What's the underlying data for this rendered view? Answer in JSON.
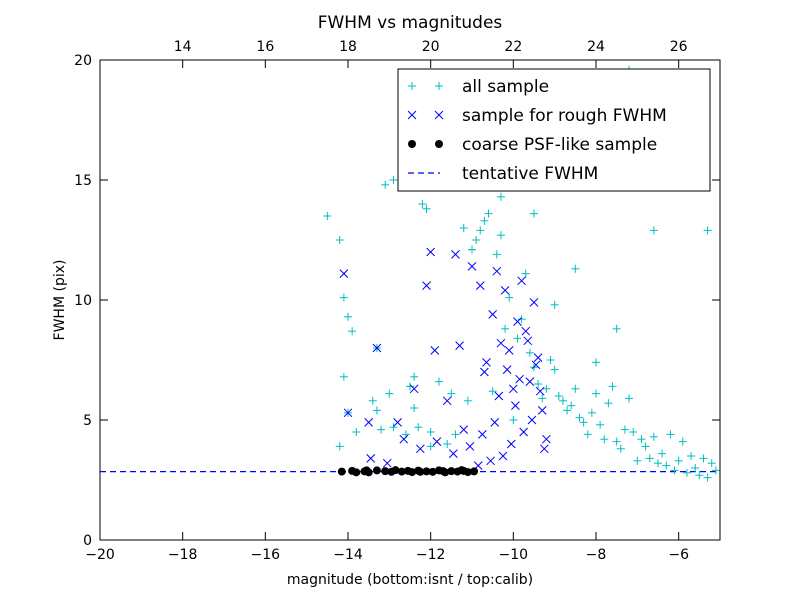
{
  "colors": {
    "all_sample": "#00bfbf",
    "rough_sample": "#0000ff",
    "psf_sample": "#000000",
    "tentative_line": "#0000ff"
  },
  "chart_data": {
    "type": "scatter",
    "title": "FWHM vs magnitudes",
    "xlabel": "magnitude (bottom:isnt / top:calib)",
    "ylabel": "FWHM (pix)",
    "xlim": [
      -20,
      -5
    ],
    "ylim": [
      0,
      20
    ],
    "x_ticks": [
      -20,
      -18,
      -16,
      -14,
      -12,
      -10,
      -8,
      -6
    ],
    "y_ticks": [
      0,
      5,
      10,
      15,
      20
    ],
    "top_axis": {
      "label_offset": 32,
      "ticks": [
        14,
        16,
        18,
        20,
        22,
        24,
        26
      ]
    },
    "grid": false,
    "legend_position": "top-right",
    "series": [
      {
        "name": "all sample",
        "marker": "plus",
        "color": "#00bfbf",
        "x": [
          -14.5,
          -14.2,
          -14.1,
          -14.0,
          -13.9,
          -13.8,
          -14.1,
          -14.2,
          -14.0,
          -13.4,
          -13.3,
          -13.2,
          -13.1,
          -13.0,
          -12.9,
          -12.6,
          -12.5,
          -12.4,
          -12.3,
          -12.2,
          -12.1,
          -12.0,
          -11.8,
          -11.6,
          -11.5,
          -11.4,
          -11.2,
          -11.1,
          -11.0,
          -10.9,
          -10.8,
          -10.7,
          -10.6,
          -10.5,
          -10.4,
          -10.3,
          -10.2,
          -10.1,
          -10.0,
          -9.9,
          -9.8,
          -9.7,
          -9.6,
          -9.5,
          -9.4,
          -9.3,
          -9.2,
          -9.1,
          -9.0,
          -8.9,
          -8.8,
          -8.7,
          -8.6,
          -8.5,
          -8.4,
          -8.3,
          -8.2,
          -8.1,
          -8.0,
          -7.9,
          -7.8,
          -7.7,
          -7.6,
          -7.5,
          -7.4,
          -7.3,
          -7.2,
          -7.1,
          -7.0,
          -6.9,
          -6.8,
          -6.7,
          -6.6,
          -6.5,
          -6.4,
          -6.3,
          -6.2,
          -6.1,
          -6.0,
          -5.9,
          -5.8,
          -5.7,
          -5.6,
          -5.5,
          -5.4,
          -5.3,
          -5.2,
          -5.1,
          -13.3,
          -12.9,
          -12.4,
          -12.0,
          -11.0,
          -10.3,
          -9.5,
          -8.2,
          -7.8,
          -7.2,
          -6.6,
          -6.9,
          -8.5,
          -9.0,
          -7.5,
          -8.0,
          -5.3
        ],
        "y": [
          13.5,
          12.5,
          10.1,
          9.3,
          8.7,
          4.5,
          6.8,
          3.9,
          5.3,
          5.8,
          5.4,
          4.6,
          14.8,
          6.1,
          15.0,
          4.4,
          6.4,
          5.5,
          4.7,
          14.0,
          13.8,
          3.9,
          6.6,
          4.0,
          6.1,
          4.4,
          13.0,
          5.8,
          12.1,
          12.5,
          12.9,
          13.3,
          13.6,
          6.2,
          11.9,
          12.7,
          8.8,
          10.1,
          5.0,
          8.4,
          9.2,
          11.1,
          7.8,
          7.2,
          6.5,
          5.9,
          6.3,
          7.5,
          7.1,
          6.0,
          5.8,
          5.4,
          5.6,
          6.3,
          5.1,
          4.9,
          4.4,
          5.3,
          6.1,
          4.8,
          4.2,
          5.7,
          6.4,
          4.1,
          3.8,
          4.6,
          5.9,
          4.5,
          3.3,
          4.2,
          3.9,
          3.4,
          4.3,
          3.2,
          3.6,
          3.1,
          4.4,
          2.9,
          3.3,
          4.1,
          2.8,
          3.5,
          3.0,
          2.7,
          3.4,
          2.6,
          3.2,
          2.9,
          8.0,
          4.7,
          6.8,
          4.5,
          12.1,
          14.3,
          13.6,
          18.4,
          16.9,
          19.6,
          12.9,
          17.0,
          11.3,
          9.8,
          8.8,
          7.4,
          12.9
        ]
      },
      {
        "name": "sample for rough FWHM",
        "marker": "x",
        "color": "#0000ff",
        "x": [
          -14.1,
          -14.0,
          -13.5,
          -13.3,
          -12.8,
          -12.4,
          -12.1,
          -12.0,
          -11.9,
          -11.6,
          -11.4,
          -11.3,
          -11.2,
          -11.0,
          -10.8,
          -10.7,
          -10.5,
          -10.4,
          -10.3,
          -10.2,
          -10.1,
          -10.0,
          -9.9,
          -9.8,
          -9.7,
          -9.6,
          -9.5,
          -9.4,
          -9.3,
          -9.2,
          -9.25,
          -9.35,
          -9.45,
          -9.55,
          -9.65,
          -9.75,
          -9.85,
          -9.95,
          -10.05,
          -10.15,
          -10.25,
          -10.35,
          -10.45,
          -10.55,
          -10.65,
          -10.75,
          -10.85,
          -11.05,
          -11.45,
          -11.85,
          -12.25,
          -12.65,
          -13.05,
          -13.45
        ],
        "y": [
          11.1,
          5.3,
          4.9,
          8.0,
          4.9,
          6.3,
          10.6,
          12.0,
          7.9,
          5.8,
          11.9,
          8.1,
          4.6,
          11.4,
          10.6,
          7.0,
          9.4,
          11.2,
          8.2,
          10.4,
          7.9,
          6.3,
          9.1,
          10.8,
          8.7,
          6.6,
          9.9,
          7.6,
          5.4,
          4.2,
          3.8,
          6.2,
          7.3,
          5.0,
          8.3,
          4.5,
          6.7,
          5.6,
          4.0,
          7.1,
          3.5,
          6.0,
          4.9,
          3.3,
          7.4,
          4.4,
          3.1,
          3.9,
          3.6,
          4.1,
          3.8,
          4.2,
          3.2,
          3.4
        ]
      },
      {
        "name": "coarse PSF-like sample",
        "marker": "circle",
        "color": "#000000",
        "x": [
          -14.15,
          -13.9,
          -13.6,
          -13.5,
          -13.3,
          -13.1,
          -12.95,
          -12.85,
          -12.7,
          -12.55,
          -12.45,
          -12.3,
          -12.1,
          -11.95,
          -11.8,
          -11.65,
          -11.5,
          -11.35,
          -11.2,
          -11.1,
          -10.95,
          -13.8,
          -13.55,
          -12.25,
          -11.7,
          -11.25
        ],
        "y": [
          2.85,
          2.88,
          2.86,
          2.82,
          2.9,
          2.87,
          2.84,
          2.91,
          2.85,
          2.88,
          2.83,
          2.89,
          2.86,
          2.84,
          2.9,
          2.82,
          2.87,
          2.85,
          2.88,
          2.83,
          2.86,
          2.82,
          2.9,
          2.84,
          2.87,
          2.91
        ]
      },
      {
        "name": "tentative FWHM",
        "marker": "dashed-line",
        "color": "#0000ff",
        "value": 2.85
      }
    ]
  }
}
